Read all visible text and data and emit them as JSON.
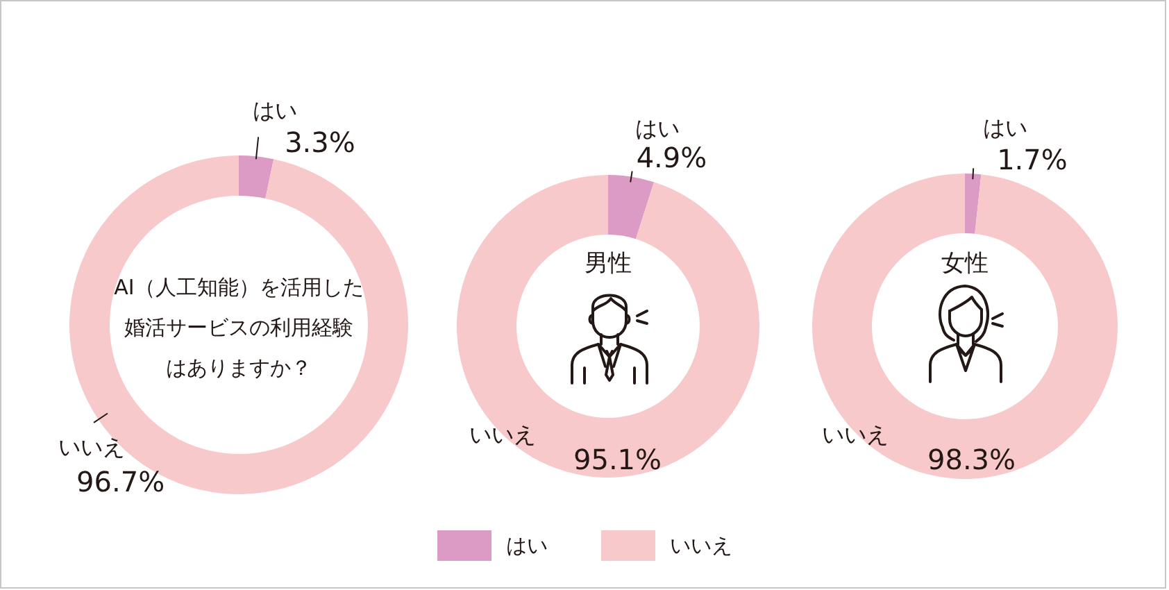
{
  "chart_data": [
    {
      "type": "donut",
      "title": "AI（人工知能）を活用した婚活サービスの利用経験はありますか？",
      "categories": [
        "はい",
        "いいえ"
      ],
      "values": [
        3.3,
        96.7
      ],
      "colors": [
        "#dc9bc4",
        "#f7c9cb"
      ],
      "value_labels": [
        "3.3%",
        "96.7%"
      ]
    },
    {
      "type": "donut",
      "title": "男性",
      "categories": [
        "はい",
        "いいえ"
      ],
      "values": [
        4.9,
        95.1
      ],
      "colors": [
        "#dc9bc4",
        "#f7c9cb"
      ],
      "value_labels": [
        "4.9%",
        "95.1%"
      ],
      "legend": "bottom"
    },
    {
      "type": "donut",
      "title": "女性",
      "categories": [
        "はい",
        "いいえ"
      ],
      "values": [
        1.7,
        98.3
      ],
      "colors": [
        "#dc9bc4",
        "#f7c9cb"
      ],
      "value_labels": [
        "1.7%",
        "98.3%"
      ]
    }
  ]
}
